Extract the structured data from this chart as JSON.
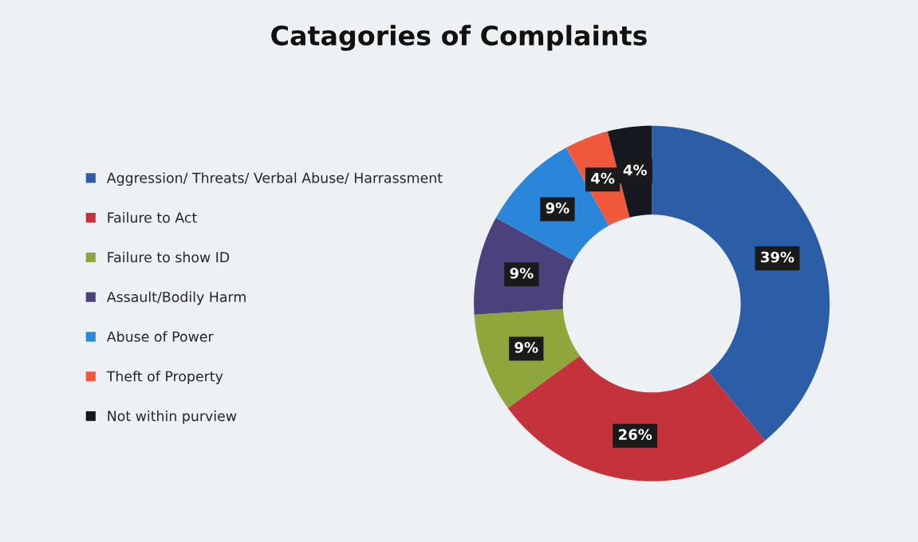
{
  "chart_data": {
    "type": "donut",
    "title": "Catagories of Complaints",
    "categories": [
      "Aggression/ Threats/ Verbal Abuse/ Harrassment",
      "Failure to Act",
      "Failure to show ID",
      "Assault/Bodily Harm",
      "Abuse of Power",
      "Theft of Property",
      "Not within purview"
    ],
    "values": [
      39,
      26,
      9,
      9,
      9,
      4,
      4
    ],
    "colors": [
      "#2b5ea7",
      "#c4333b",
      "#8fa63c",
      "#4b417c",
      "#2a86d8",
      "#f0583c",
      "#15191f"
    ],
    "value_labels": [
      "39%",
      "26%",
      "9%",
      "9%",
      "9%",
      "4%",
      "4%"
    ],
    "legend": "left"
  }
}
